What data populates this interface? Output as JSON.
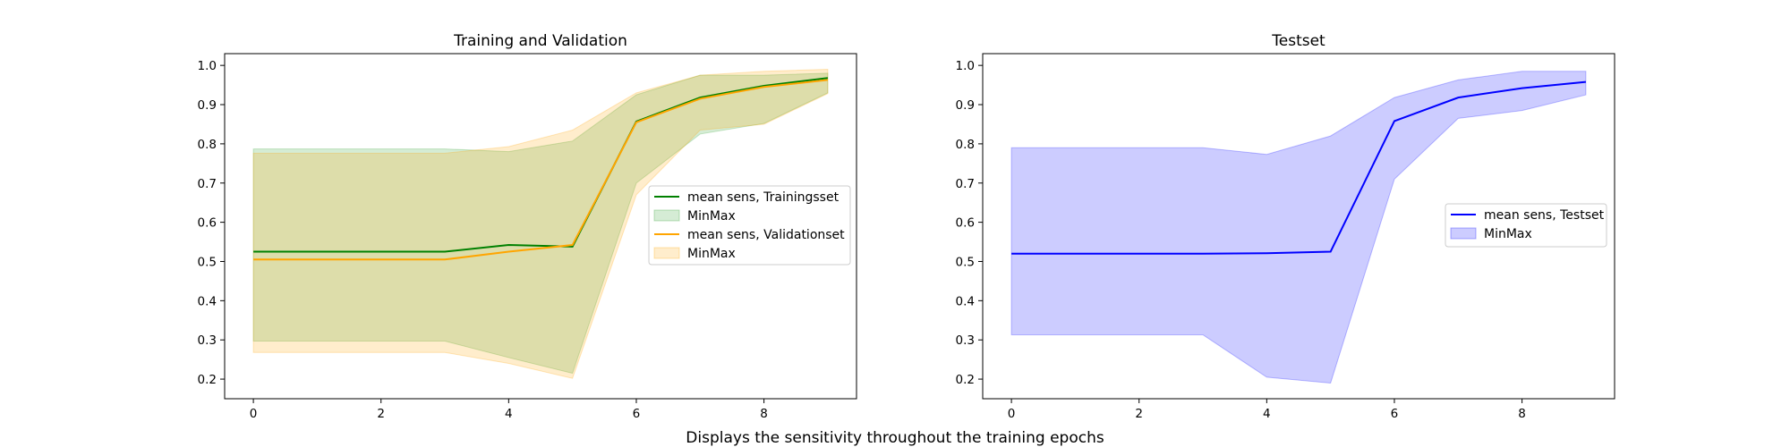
{
  "figure": {
    "caption": "Displays the sensitivity throughout the training epochs"
  },
  "chart_data": [
    {
      "type": "line",
      "title": "Training and Validation",
      "xlabel": "",
      "ylabel": "",
      "xlim": [
        -0.45,
        9.45
      ],
      "ylim": [
        0.15,
        1.03
      ],
      "xticks": [
        0,
        2,
        4,
        6,
        8
      ],
      "yticks": [
        0.2,
        0.3,
        0.4,
        0.5,
        0.6,
        0.7,
        0.8,
        0.9,
        1.0
      ],
      "grid": false,
      "legend_position": "center-right",
      "x": [
        0,
        1,
        2,
        3,
        4,
        5,
        6,
        7,
        8,
        9
      ],
      "series": [
        {
          "name": "mean sens, Trainingsset",
          "color": "#008000",
          "values": [
            0.525,
            0.525,
            0.525,
            0.525,
            0.542,
            0.538,
            0.857,
            0.918,
            0.948,
            0.968
          ],
          "band_name": "MinMax",
          "band_color": "#2ca02c",
          "band_min": [
            0.297,
            0.297,
            0.297,
            0.297,
            0.255,
            0.215,
            0.7,
            0.825,
            0.852,
            0.93
          ],
          "band_max": [
            0.787,
            0.787,
            0.787,
            0.787,
            0.78,
            0.807,
            0.925,
            0.975,
            0.975,
            0.98
          ]
        },
        {
          "name": "mean sens, Validationset",
          "color": "#FFA500",
          "values": [
            0.505,
            0.505,
            0.505,
            0.505,
            0.525,
            0.542,
            0.855,
            0.915,
            0.945,
            0.963
          ],
          "band_name": "MinMax",
          "band_color": "#FFA500",
          "band_min": [
            0.268,
            0.268,
            0.268,
            0.268,
            0.24,
            0.202,
            0.67,
            0.835,
            0.85,
            0.928
          ],
          "band_max": [
            0.776,
            0.776,
            0.776,
            0.776,
            0.793,
            0.835,
            0.93,
            0.975,
            0.985,
            0.99
          ]
        }
      ]
    },
    {
      "type": "line",
      "title": "Testset",
      "xlabel": "",
      "ylabel": "",
      "xlim": [
        -0.45,
        9.45
      ],
      "ylim": [
        0.15,
        1.03
      ],
      "xticks": [
        0,
        2,
        4,
        6,
        8
      ],
      "yticks": [
        0.2,
        0.3,
        0.4,
        0.5,
        0.6,
        0.7,
        0.8,
        0.9,
        1.0
      ],
      "grid": false,
      "legend_position": "center-right",
      "x": [
        0,
        1,
        2,
        3,
        4,
        5,
        6,
        7,
        8,
        9
      ],
      "series": [
        {
          "name": "mean sens, Testset",
          "color": "#0000FF",
          "values": [
            0.52,
            0.52,
            0.52,
            0.52,
            0.521,
            0.525,
            0.858,
            0.918,
            0.942,
            0.958
          ],
          "band_name": "MinMax",
          "band_color": "#0000FF",
          "band_min": [
            0.313,
            0.313,
            0.313,
            0.313,
            0.205,
            0.19,
            0.71,
            0.865,
            0.885,
            0.925
          ],
          "band_max": [
            0.79,
            0.79,
            0.79,
            0.79,
            0.773,
            0.82,
            0.918,
            0.963,
            0.985,
            0.985
          ]
        }
      ]
    }
  ]
}
